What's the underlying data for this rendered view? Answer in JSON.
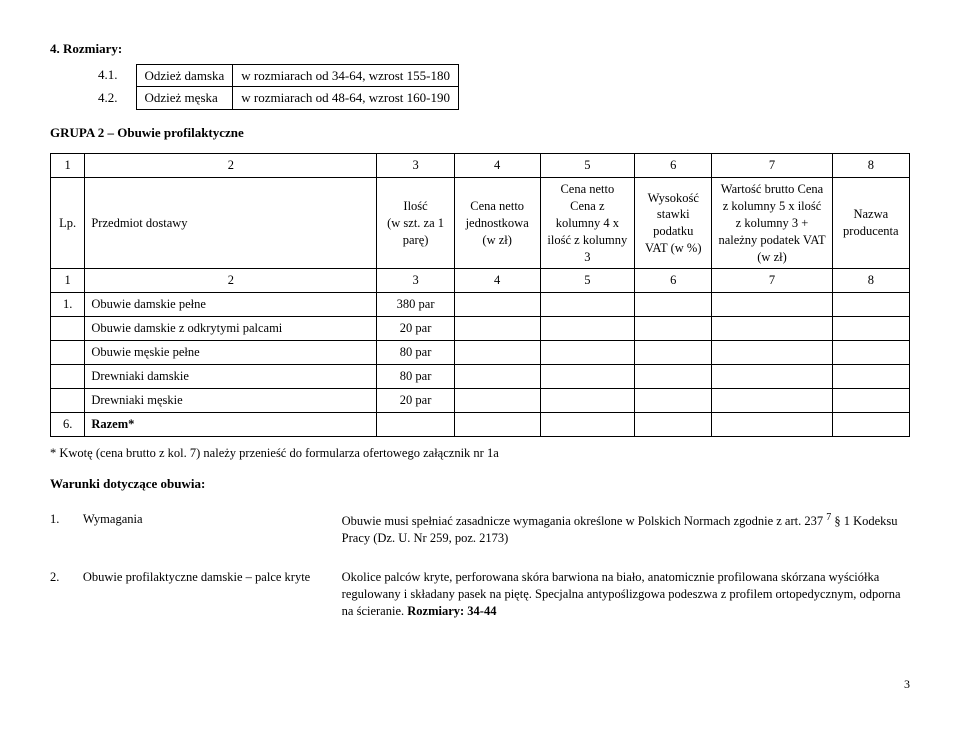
{
  "sizesHeading": "4. Rozmiary:",
  "sizeRows": [
    {
      "num": "4.1.",
      "label": "Odzież damska",
      "range": "w rozmiarach od 34-64, wzrost 155-180"
    },
    {
      "num": "4.2.",
      "label": "Odzież męska",
      "range": "w rozmiarach od 48-64, wzrost 160-190"
    }
  ],
  "groupHeading": "GRUPA 2 – Obuwie profilaktyczne",
  "mainHeader": {
    "numRow1": [
      "1",
      "2",
      "3",
      "4",
      "5",
      "6",
      "7",
      "8"
    ],
    "labels": [
      "Lp.",
      "Przedmiot dostawy",
      "Ilość\n(w szt. za 1 parę)",
      "Cena netto jednostkowa (w zł)",
      "Cena netto Cena z kolumny 4 x  ilość z kolumny 3",
      "Wysokość stawki podatku VAT (w %)",
      "Wartość brutto Cena z kolumny 5 x ilość z kolumny 3 + należny podatek VAT (w zł)",
      "Nazwa producenta"
    ],
    "numRow2": [
      "1",
      "2",
      "3",
      "4",
      "5",
      "6",
      "7",
      "8"
    ]
  },
  "tableData": {
    "columns": 8,
    "colWidths": [
      "4%",
      "34%",
      "9%",
      "10%",
      "11%",
      "9%",
      "14%",
      "9%"
    ]
  },
  "dataRows": [
    {
      "lp": "1.",
      "name": "Obuwie damskie pełne",
      "qty": "380 par"
    },
    {
      "lp": "",
      "name": "Obuwie damskie z odkrytymi palcami",
      "qty": "20 par"
    },
    {
      "lp": "",
      "name": "Obuwie męskie pełne",
      "qty": "80 par"
    },
    {
      "lp": "",
      "name": "Drewniaki damskie",
      "qty": "80 par"
    },
    {
      "lp": "",
      "name": "Drewniaki męskie",
      "qty": "20 par"
    }
  ],
  "razemRow": {
    "lp": "6.",
    "label": "Razem*"
  },
  "footnote": "* Kwotę (cena brutto z kol. 7) należy przenieść do formularza ofertowego załącznik nr 1a",
  "conditionsHeading": "Warunki dotyczące obuwia:",
  "conditions": [
    {
      "num": "1.",
      "term": "Wymagania",
      "desc_before": "Obuwie musi spełniać zasadnicze wymagania określone w Polskich Normach zgodnie z art. 237 ",
      "sup": "7",
      "desc_after": " § 1 Kodeksu Pracy (Dz. U. Nr 259, poz. 2173)"
    },
    {
      "num": "2.",
      "term": "Obuwie profilaktyczne damskie – palce kryte",
      "desc_plain": "Okolice palców kryte, perforowana skóra barwiona na biało, anatomicznie profilowana skórzana wyściółka regulowany i składany pasek na piętę. Specjalna antypoślizgowa podeszwa z profilem ortopedycznym, odporna na ścieranie.  ",
      "bold_tail": "Rozmiary: 34-44"
    }
  ],
  "pageNumber": "3"
}
